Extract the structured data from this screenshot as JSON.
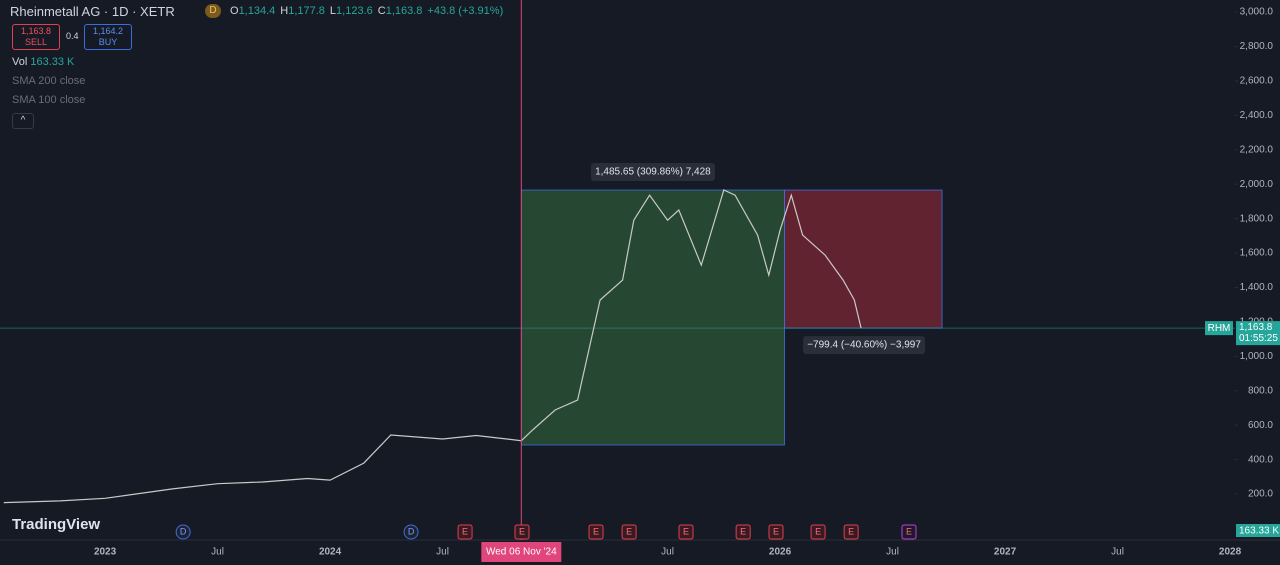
{
  "chart_data": {
    "type": "line",
    "title": "Rheinmetall AG · 1D · XETR",
    "interval_badge": "D",
    "ohlc": [
      {
        "key": "O",
        "value": "1,134.4"
      },
      {
        "key": "H",
        "value": "1,177.8"
      },
      {
        "key": "L",
        "value": "1,123.6"
      },
      {
        "key": "C",
        "value": "1,163.8"
      }
    ],
    "change": "+43.8 (+3.91%)",
    "trade": {
      "sell_price": "1,163.8",
      "sell": "SELL",
      "spread": "0.4",
      "buy_price": "1,164.2",
      "buy": "BUY"
    },
    "volume": {
      "label": "Vol",
      "value": "163.33 K"
    },
    "indicators": [
      "SMA 200 close",
      "SMA 100 close"
    ],
    "logo": "TradingView",
    "series": [
      {
        "name": "RHM",
        "color": "#c9c9c9",
        "x": [
          2022.55,
          2022.8,
          2023.0,
          2023.3,
          2023.5,
          2023.7,
          2023.9,
          2024.0,
          2024.15,
          2024.27,
          2024.5,
          2024.65,
          2024.85,
          2024.9,
          2025.0,
          2025.1,
          2025.15,
          2025.2,
          2025.3,
          2025.35,
          2025.42,
          2025.5,
          2025.55,
          2025.65,
          2025.75,
          2025.8,
          2025.9,
          2025.95,
          2026.0,
          2026.05,
          2026.1,
          2026.2,
          2026.28,
          2026.33,
          2026.36
        ],
        "values": [
          150,
          160,
          175,
          230,
          260,
          270,
          290,
          281,
          380,
          543,
          520,
          540,
          510,
          572,
          688,
          746,
          1036,
          1327,
          1443,
          1791,
          1936,
          1791,
          1850,
          1530,
          1966,
          1936,
          1704,
          1472,
          1733,
          1936,
          1704,
          1588,
          1443,
          1327,
          1164
        ]
      }
    ],
    "xlim": [
      2022.533,
      2028.022
    ],
    "xticks": [
      2023,
      {
        "value": 2023.5,
        "label": "Jul"
      },
      2024,
      {
        "value": 2024.5,
        "label": "Jul"
      },
      {
        "value": 2025.5,
        "label": "Jul"
      },
      2026,
      {
        "value": 2026.5,
        "label": "Jul"
      },
      2027,
      {
        "value": 2027.5,
        "label": "Jul"
      },
      2028
    ],
    "ylim": [
      -67,
      3070
    ],
    "yticks": [
      {
        "value": 200,
        "label": "200.0"
      },
      {
        "value": 400,
        "label": "400.0"
      },
      {
        "value": 600,
        "label": "600.0"
      },
      {
        "value": 800,
        "label": "800.0"
      },
      {
        "value": 1000,
        "label": "1,000.0"
      },
      {
        "value": 1200,
        "label": "1,200.0"
      },
      {
        "value": 1400,
        "label": "1,400.0"
      },
      {
        "value": 1600,
        "label": "1,600.0"
      },
      {
        "value": 1800,
        "label": "1,800.0"
      },
      {
        "value": 2000,
        "label": "2,000.0"
      },
      {
        "value": 2200,
        "label": "2,200.0"
      },
      {
        "value": 2400,
        "label": "2,400.0"
      },
      {
        "value": 2600,
        "label": "2,600.0"
      },
      {
        "value": 2800,
        "label": "2,800.0"
      },
      {
        "value": 3000,
        "label": "3,000.0"
      }
    ],
    "last_price": {
      "value": 1163.8,
      "symbol": "RHM",
      "label": "1,163.8",
      "countdown": "01:55:25"
    },
    "volume_badge": "163.33 K",
    "crosshair": {
      "x": 2024.85,
      "label": "Wed 06 Nov '24"
    },
    "position": {
      "entry_x": 2024.85,
      "split_x": 2026.02,
      "end_x": 2026.72,
      "top": 1966,
      "bottom": 485,
      "stop": 1164,
      "up_label": "1,485.65 (309.86%) 7,428",
      "down_label": "−799.4 (−40.60%) −3,997"
    },
    "events": [
      {
        "x": 2023.347,
        "label": "D"
      },
      {
        "x": 2024.36,
        "label": "D"
      },
      {
        "x": 2024.6,
        "label": "E"
      },
      {
        "x": 2024.853,
        "label": "E"
      },
      {
        "x": 2025.182,
        "label": "E"
      },
      {
        "x": 2025.329,
        "label": "E"
      },
      {
        "x": 2025.582,
        "label": "E"
      },
      {
        "x": 2025.836,
        "label": "E"
      },
      {
        "x": 2025.982,
        "label": "E"
      },
      {
        "x": 2026.169,
        "label": "E"
      },
      {
        "x": 2026.316,
        "label": "E"
      },
      {
        "x": 2026.573,
        "label": "E"
      }
    ]
  }
}
